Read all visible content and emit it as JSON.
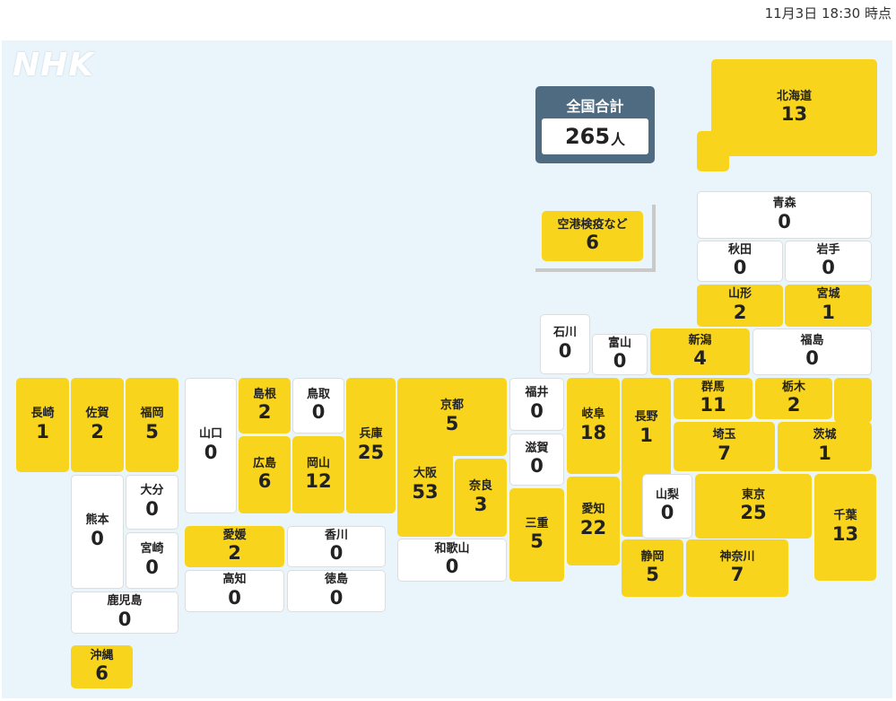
{
  "header": {
    "timestamp": "11月3日 18:30 時点"
  },
  "logo": {
    "text": "NHK"
  },
  "total": {
    "label": "全国合計",
    "count": "265",
    "unit": "人"
  },
  "quarantine": {
    "name": "空港検疫など",
    "count": "6"
  },
  "colors": {
    "has_cases": "#f8d51c",
    "no_cases": "#ffffff",
    "background": "#eaf4fb",
    "total_panel": "#4f6b81"
  },
  "prefectures": [
    {
      "id": "hokkaido",
      "name": "北海道",
      "count": "13"
    },
    {
      "id": "aomori",
      "name": "青森",
      "count": "0"
    },
    {
      "id": "akita",
      "name": "秋田",
      "count": "0"
    },
    {
      "id": "iwate",
      "name": "岩手",
      "count": "0"
    },
    {
      "id": "yamagata",
      "name": "山形",
      "count": "2"
    },
    {
      "id": "miyagi",
      "name": "宮城",
      "count": "1"
    },
    {
      "id": "ishikawa",
      "name": "石川",
      "count": "0"
    },
    {
      "id": "toyama",
      "name": "富山",
      "count": "0"
    },
    {
      "id": "niigata",
      "name": "新潟",
      "count": "4"
    },
    {
      "id": "fukushima",
      "name": "福島",
      "count": "0"
    },
    {
      "id": "nagasaki",
      "name": "長崎",
      "count": "1"
    },
    {
      "id": "saga",
      "name": "佐賀",
      "count": "2"
    },
    {
      "id": "fukuoka",
      "name": "福岡",
      "count": "5"
    },
    {
      "id": "yamaguchi",
      "name": "山口",
      "count": "0"
    },
    {
      "id": "shimane",
      "name": "島根",
      "count": "2"
    },
    {
      "id": "tottori",
      "name": "鳥取",
      "count": "0"
    },
    {
      "id": "hyogo",
      "name": "兵庫",
      "count": "25"
    },
    {
      "id": "kyoto",
      "name": "京都",
      "count": "5"
    },
    {
      "id": "fukui",
      "name": "福井",
      "count": "0"
    },
    {
      "id": "gifu",
      "name": "岐阜",
      "count": "18"
    },
    {
      "id": "nagano",
      "name": "長野",
      "count": "1"
    },
    {
      "id": "gunma",
      "name": "群馬",
      "count": "11"
    },
    {
      "id": "tochigi",
      "name": "栃木",
      "count": "2"
    },
    {
      "id": "hiroshima",
      "name": "広島",
      "count": "6"
    },
    {
      "id": "okayama",
      "name": "岡山",
      "count": "12"
    },
    {
      "id": "osaka",
      "name": "大阪",
      "count": "53"
    },
    {
      "id": "nara",
      "name": "奈良",
      "count": "3"
    },
    {
      "id": "shiga",
      "name": "滋賀",
      "count": "0"
    },
    {
      "id": "saitama",
      "name": "埼玉",
      "count": "7"
    },
    {
      "id": "ibaraki",
      "name": "茨城",
      "count": "1"
    },
    {
      "id": "kumamoto",
      "name": "熊本",
      "count": "0"
    },
    {
      "id": "oita",
      "name": "大分",
      "count": "0"
    },
    {
      "id": "miyazaki",
      "name": "宮崎",
      "count": "0"
    },
    {
      "id": "kagoshima",
      "name": "鹿児島",
      "count": "0"
    },
    {
      "id": "ehime",
      "name": "愛媛",
      "count": "2"
    },
    {
      "id": "kagawa",
      "name": "香川",
      "count": "0"
    },
    {
      "id": "kochi",
      "name": "高知",
      "count": "0"
    },
    {
      "id": "tokushima",
      "name": "徳島",
      "count": "0"
    },
    {
      "id": "wakayama",
      "name": "和歌山",
      "count": "0"
    },
    {
      "id": "mie",
      "name": "三重",
      "count": "5"
    },
    {
      "id": "aichi",
      "name": "愛知",
      "count": "22"
    },
    {
      "id": "yamanashi",
      "name": "山梨",
      "count": "0"
    },
    {
      "id": "tokyo",
      "name": "東京",
      "count": "25"
    },
    {
      "id": "chiba",
      "name": "千葉",
      "count": "13"
    },
    {
      "id": "shizuoka",
      "name": "静岡",
      "count": "5"
    },
    {
      "id": "kanagawa",
      "name": "神奈川",
      "count": "7"
    },
    {
      "id": "okinawa",
      "name": "沖縄",
      "count": "6"
    }
  ]
}
